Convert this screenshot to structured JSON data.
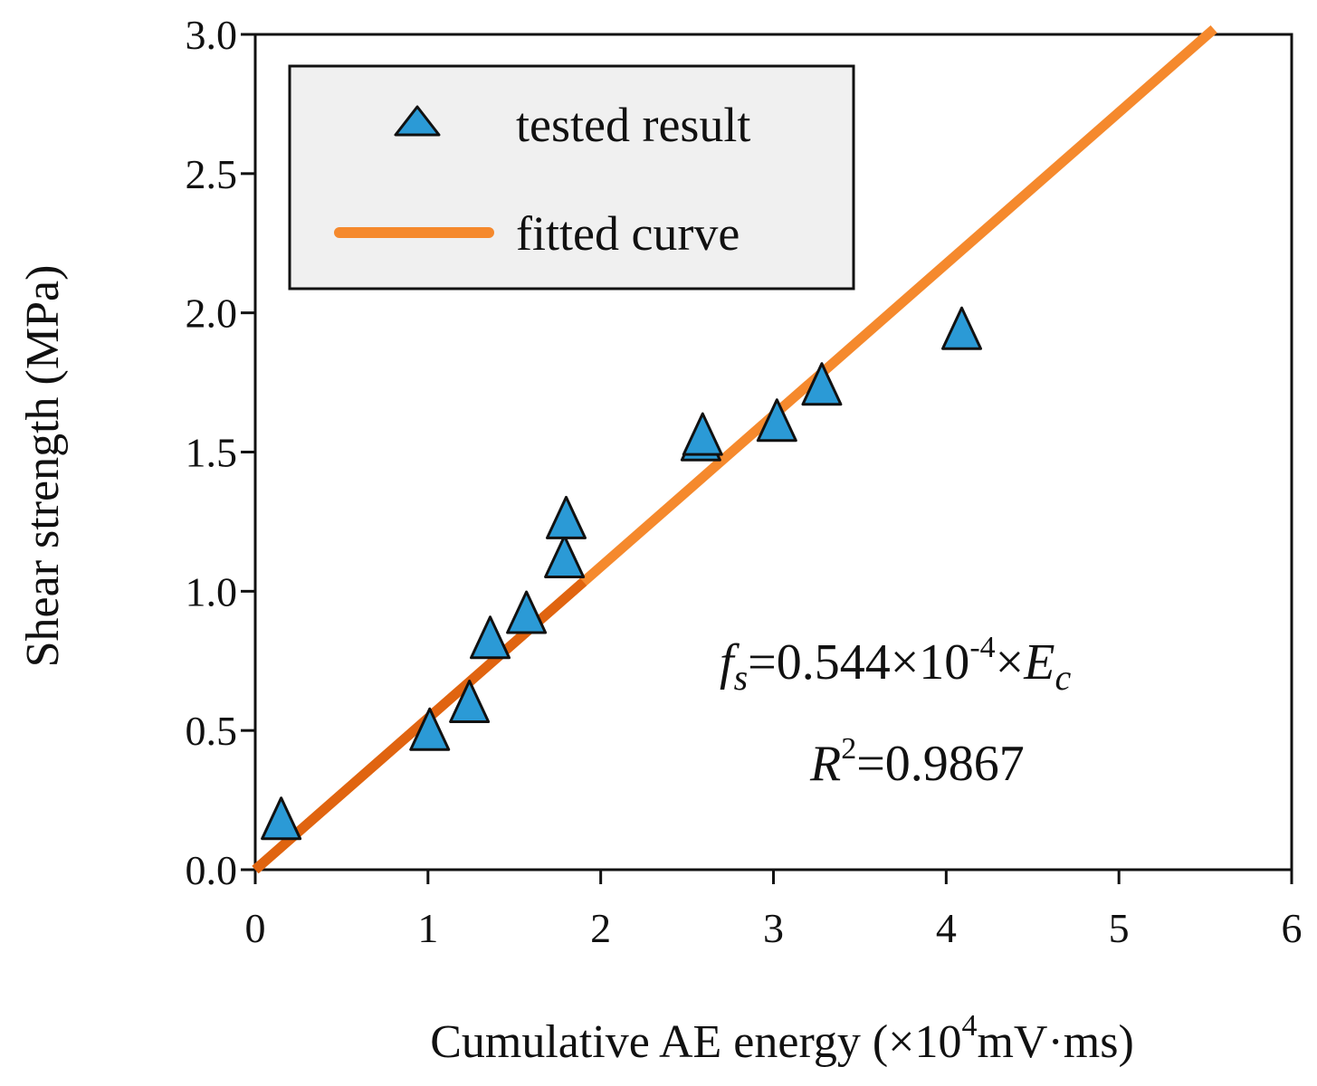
{
  "chart_data": {
    "type": "scatter",
    "title": "",
    "xlabel": {
      "prefix": "Cumulative AE energy (×10",
      "sup": "4",
      "suffix": "mV·ms)"
    },
    "ylabel": "Shear strength (MPa)",
    "xlim": [
      0,
      6
    ],
    "ylim": [
      0,
      3
    ],
    "xticks": [
      0,
      1,
      2,
      3,
      4,
      5,
      6
    ],
    "yticks": [
      0.0,
      0.5,
      1.0,
      1.5,
      2.0,
      2.5,
      3.0
    ],
    "xtick_labels": [
      "0",
      "1",
      "2",
      "3",
      "4",
      "5",
      "6"
    ],
    "ytick_labels": [
      "0.0",
      "0.5",
      "1.0",
      "1.5",
      "2.0",
      "2.5",
      "3.0"
    ],
    "grid": false,
    "legend_position": "top-left",
    "series": [
      {
        "name": "tested result",
        "kind": "scatter",
        "marker": "triangle",
        "color": "#2b9ad6",
        "x": [
          0.15,
          1.01,
          1.24,
          1.36,
          1.57,
          1.79,
          1.8,
          2.58,
          2.59,
          3.02,
          3.28,
          4.09
        ],
        "y": [
          0.17,
          0.49,
          0.59,
          0.82,
          0.91,
          1.11,
          1.25,
          1.53,
          1.55,
          1.6,
          1.73,
          1.93
        ]
      },
      {
        "name": "fitted curve",
        "kind": "line",
        "color": "#f5892d",
        "color_dark": "#e06410",
        "slope": 0.544,
        "x": [
          0,
          5.55
        ],
        "y": [
          0,
          3.0192
        ]
      }
    ],
    "annotations": {
      "equation": {
        "f": "f",
        "f_sub": "s",
        "middle": "=0.544×10",
        "exp": "-4",
        "times": "×",
        "E": "E",
        "E_sub": "c"
      },
      "r2": {
        "R": "R",
        "sup": "2",
        "value": "=0.9867"
      }
    }
  }
}
